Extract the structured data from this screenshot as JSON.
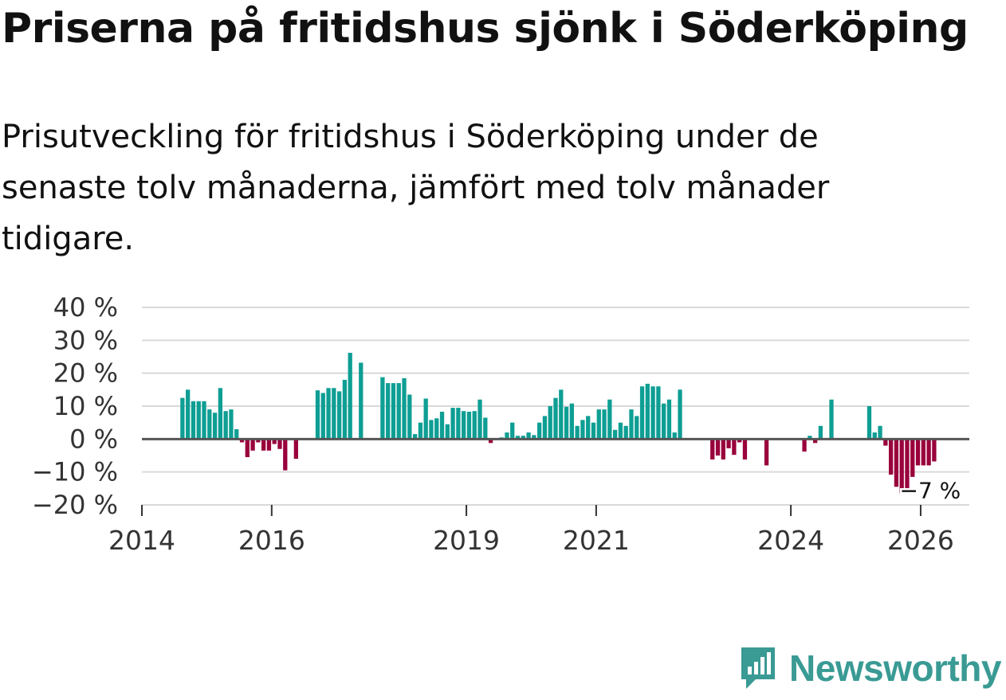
{
  "title": "Priserna på fritidshus sjönk i Söderköping",
  "subtitle": "Prisutveckling för fritidshus i Söderköping under de senaste tolv månaderna, jämfört med tolv månader tidigare.",
  "brand": {
    "name": "Newsworthy",
    "icon": "newsworthy-logo-icon",
    "color": "#3a9a94"
  },
  "colors": {
    "positive": "#0e9e94",
    "negative": "#99003c",
    "grid": "#d9d9d9",
    "zero_line": "#555555",
    "axis": "#333333"
  },
  "chart_data": {
    "type": "bar",
    "title": "Priserna på fritidshus sjönk i Söderköping",
    "xlabel": "",
    "ylabel": "",
    "unit": "%",
    "grid": true,
    "ylim": [
      -20,
      40
    ],
    "y_ticks": [
      {
        "value": 40,
        "label": "40 %"
      },
      {
        "value": 30,
        "label": "30 %"
      },
      {
        "value": 20,
        "label": "20 %"
      },
      {
        "value": 10,
        "label": "10 %"
      },
      {
        "value": 0,
        "label": "0 %"
      },
      {
        "value": -10,
        "label": "−10 %"
      },
      {
        "value": -20,
        "label": "−20 %"
      }
    ],
    "x_range": [
      2014.0,
      2026.75
    ],
    "x_ticks": [
      {
        "value": 2014,
        "label": "2014"
      },
      {
        "value": 2016,
        "label": "2016"
      },
      {
        "value": 2019,
        "label": "2019"
      },
      {
        "value": 2021,
        "label": "2021"
      },
      {
        "value": 2024,
        "label": "2024"
      },
      {
        "value": 2026,
        "label": "2026"
      }
    ],
    "series_start": "2014-08",
    "frequency": "monthly",
    "values": [
      12.5,
      15,
      11.5,
      11.5,
      11.5,
      9,
      8,
      15.5,
      8.5,
      9,
      3,
      -1,
      -5.5,
      -3.5,
      -1,
      -3.5,
      -3.5,
      -1.5,
      -3,
      -9.5,
      null,
      -6,
      null,
      null,
      null,
      14.8,
      14,
      15.5,
      15.5,
      14.5,
      18,
      26.2,
      null,
      23.2,
      null,
      null,
      null,
      18.8,
      17,
      17,
      17,
      18.5,
      13.5,
      1.5,
      5,
      12.3,
      5.8,
      6.3,
      8.3,
      4.5,
      9.5,
      9.5,
      8.5,
      8.3,
      8.5,
      12,
      6.5,
      -1.2,
      null,
      0.5,
      2,
      5,
      1,
      1,
      2,
      1.2,
      5,
      7,
      10,
      12.5,
      15,
      9.8,
      10.8,
      4,
      5.8,
      7,
      5,
      9,
      9,
      12,
      2.8,
      5,
      4,
      9,
      7,
      16,
      16.8,
      16,
      16,
      10.8,
      12,
      2,
      15,
      null,
      null,
      null,
      null,
      null,
      -6.2,
      -5,
      -6.2,
      -2.8,
      -4.8,
      -1,
      -6.2,
      null,
      null,
      null,
      -8,
      null,
      null,
      null,
      null,
      null,
      null,
      -3.8,
      1,
      -1.2,
      4,
      null,
      12,
      null,
      null,
      null,
      null,
      null,
      null,
      10,
      2,
      4,
      -2,
      -10.8,
      -14.5,
      -16.5,
      -15.5,
      -11.5,
      -8,
      -8,
      -8,
      -6.8
    ],
    "last_value_label": "−7 %"
  }
}
